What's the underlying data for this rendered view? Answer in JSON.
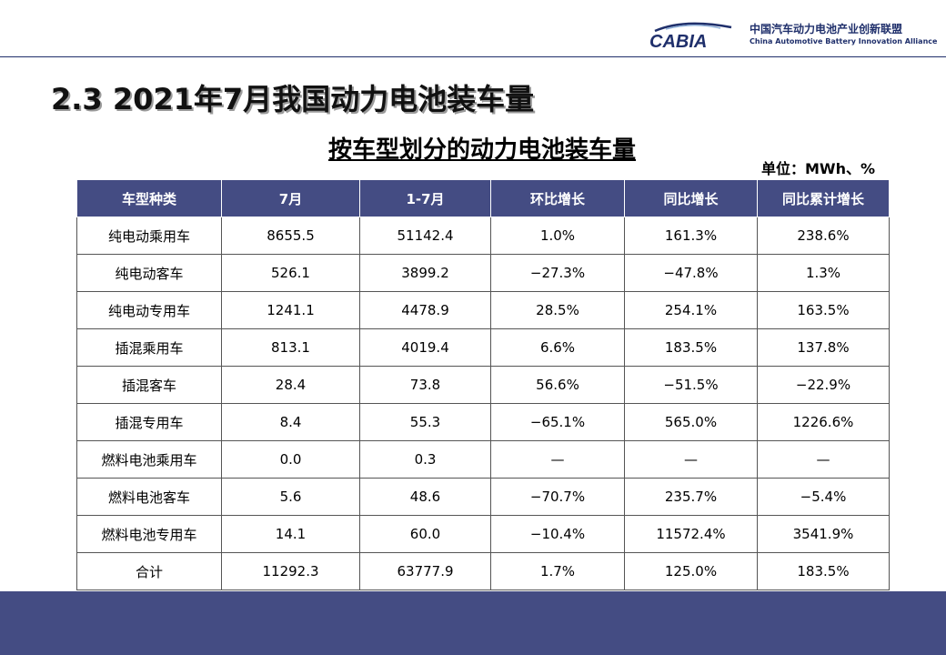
{
  "logo": {
    "wordmark": "CABIA",
    "name_cn": "中国汽车动力电池产业创新联盟",
    "name_en": "China Automotive Battery Innovation Alliance",
    "color": "#1f2f6b"
  },
  "slide": {
    "title": "2.3 2021年7月我国动力电池装车量",
    "subtitle": "按车型划分的动力电池装车量",
    "unit": "单位：MWh、%"
  },
  "table": {
    "header_color": "#444c83",
    "columns": [
      "车型种类",
      "7月",
      "1-7月",
      "环比增长",
      "同比增长",
      "同比累计增长"
    ],
    "rows": [
      [
        "纯电动乘用车",
        "8655.5",
        "51142.4",
        "1.0%",
        "161.3%",
        "238.6%"
      ],
      [
        "纯电动客车",
        "526.1",
        "3899.2",
        "−27.3%",
        "−47.8%",
        "1.3%"
      ],
      [
        "纯电动专用车",
        "1241.1",
        "4478.9",
        "28.5%",
        "254.1%",
        "163.5%"
      ],
      [
        "插混乘用车",
        "813.1",
        "4019.4",
        "6.6%",
        "183.5%",
        "137.8%"
      ],
      [
        "插混客车",
        "28.4",
        "73.8",
        "56.6%",
        "−51.5%",
        "−22.9%"
      ],
      [
        "插混专用车",
        "8.4",
        "55.3",
        "−65.1%",
        "565.0%",
        "1226.6%"
      ],
      [
        "燃料电池乘用车",
        "0.0",
        "0.3",
        "—",
        "—",
        "—"
      ],
      [
        "燃料电池客车",
        "5.6",
        "48.6",
        "−70.7%",
        "235.7%",
        "−5.4%"
      ],
      [
        "燃料电池专用车",
        "14.1",
        "60.0",
        "−10.4%",
        "11572.4%",
        "3541.9%"
      ],
      [
        "合计",
        "11292.3",
        "63777.9",
        "1.7%",
        "125.0%",
        "183.5%"
      ]
    ]
  }
}
